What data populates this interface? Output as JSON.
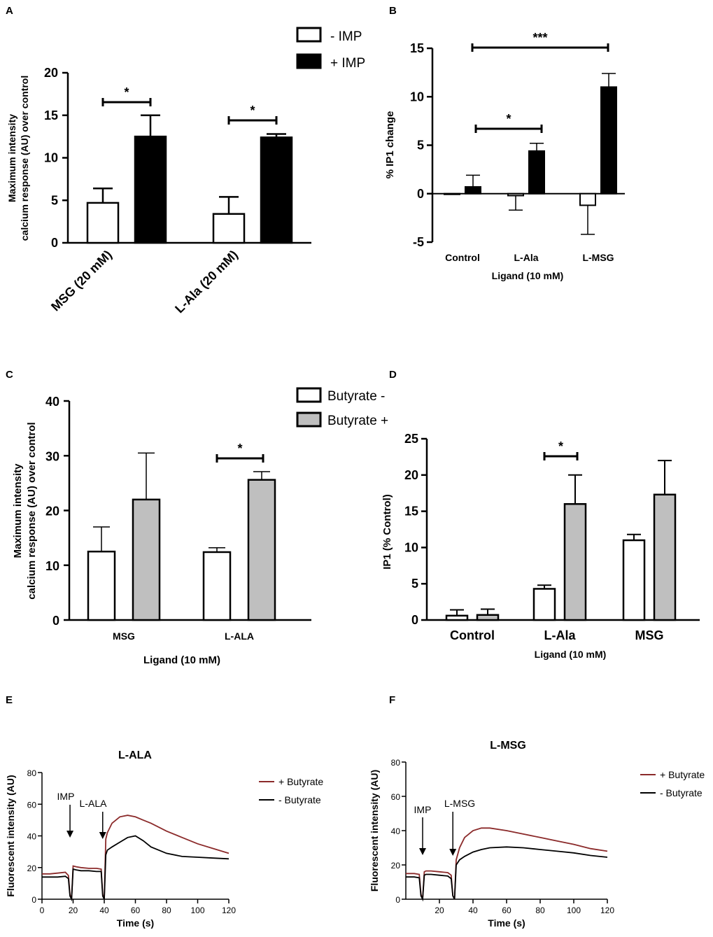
{
  "figure": {
    "panels": [
      "A",
      "B",
      "C",
      "D",
      "E",
      "F"
    ]
  },
  "colors": {
    "black_bar": "#000000",
    "white_bar": "#ffffff",
    "grey_bar": "#bfbfbf",
    "plus_butyrate_line": "#8b2a2a",
    "minus_butyrate_line": "#000000"
  },
  "chart_data": [
    {
      "panel": "A",
      "type": "bar",
      "title": "",
      "xlabel": "",
      "ylabel_lines": [
        "Maximum intensity",
        "calcium response (AU) over control"
      ],
      "categories": [
        "MSG (20 mM)",
        "L-Ala (20 mM)"
      ],
      "ylim": [
        0,
        20
      ],
      "yticks": [
        "0",
        "5",
        "10",
        "15",
        "20"
      ],
      "series": [
        {
          "name": "- IMP",
          "values": [
            4.7,
            3.4
          ],
          "errors": [
            1.7,
            2.0
          ]
        },
        {
          "name": "+ IMP",
          "values": [
            12.5,
            12.4
          ],
          "errors": [
            2.5,
            0.4
          ]
        }
      ],
      "significance": [
        "*",
        "*"
      ],
      "legend": [
        "- IMP",
        "+ IMP"
      ]
    },
    {
      "panel": "B",
      "type": "bar",
      "title": "",
      "xlabel": "Ligand (10 mM)",
      "ylabel": "% IP1 change",
      "categories": [
        "Control",
        "L-Ala",
        "L-MSG"
      ],
      "ylim": [
        -5,
        15
      ],
      "yticks": [
        "-5",
        "0",
        "5",
        "10",
        "15"
      ],
      "series": [
        {
          "name": "- IMP",
          "values": [
            0,
            -0.2,
            -1.2
          ],
          "errors": [
            0,
            1.5,
            3.0
          ]
        },
        {
          "name": "+ IMP",
          "values": [
            0.7,
            4.4,
            11.0
          ],
          "errors": [
            1.2,
            0.8,
            1.4
          ]
        }
      ],
      "significance": [
        "*",
        "***"
      ]
    },
    {
      "panel": "C",
      "type": "bar",
      "title": "",
      "xlabel": "Ligand (10 mM)",
      "ylabel_lines": [
        "Maximum intensity",
        "calcium response (AU) over control"
      ],
      "categories": [
        "MSG",
        "L-ALA"
      ],
      "ylim": [
        0,
        40
      ],
      "yticks": [
        "0",
        "10",
        "20",
        "30",
        "40"
      ],
      "series": [
        {
          "name": "Butyrate -",
          "values": [
            12.5,
            12.4
          ],
          "errors": [
            4.5,
            0.8
          ]
        },
        {
          "name": "Butyrate +",
          "values": [
            22.0,
            25.6
          ],
          "errors": [
            8.5,
            1.5
          ]
        }
      ],
      "significance": [
        "*"
      ],
      "legend": [
        "Butyrate -",
        "Butyrate +"
      ]
    },
    {
      "panel": "D",
      "type": "bar",
      "title": "",
      "xlabel": "Ligand (10 mM)",
      "ylabel": "IP1 (% Control)",
      "categories": [
        "Control",
        "L-Ala",
        "MSG"
      ],
      "ylim": [
        0,
        25
      ],
      "yticks": [
        "0",
        "5",
        "10",
        "15",
        "20",
        "25"
      ],
      "series": [
        {
          "name": "Butyrate -",
          "values": [
            0.6,
            4.3,
            11.0
          ],
          "errors": [
            0.8,
            0.5,
            0.8
          ]
        },
        {
          "name": "Butyrate +",
          "values": [
            0.7,
            16.0,
            17.3
          ],
          "errors": [
            0.8,
            4.0,
            4.7
          ]
        }
      ],
      "significance": [
        "*"
      ]
    },
    {
      "panel": "E",
      "type": "line",
      "title": "L-ALA",
      "xlabel": "Time (s)",
      "ylabel": "Fluorescent intensity (AU)",
      "xlim": [
        0,
        120
      ],
      "ylim": [
        0,
        80
      ],
      "xticks": [
        "0",
        "20",
        "40",
        "60",
        "80",
        "100",
        "120"
      ],
      "yticks": [
        "0",
        "20",
        "40",
        "60",
        "80"
      ],
      "annotations": [
        {
          "label": "IMP",
          "x": 18
        },
        {
          "label": "L-ALA",
          "x": 39
        }
      ],
      "series": [
        {
          "name": "+ Butyrate",
          "x": [
            0,
            5,
            10,
            15,
            17,
            18,
            19,
            20,
            22,
            25,
            30,
            35,
            38,
            39,
            40,
            41,
            42,
            45,
            50,
            55,
            60,
            65,
            70,
            80,
            90,
            100,
            110,
            120
          ],
          "y": [
            16,
            16,
            16.5,
            17,
            15,
            3,
            0,
            21,
            20.5,
            20,
            19.5,
            19.5,
            19,
            3,
            0,
            38,
            42,
            48,
            52,
            53,
            52,
            50,
            48,
            43,
            39,
            35,
            32,
            29
          ]
        },
        {
          "name": "- Butyrate",
          "x": [
            0,
            5,
            10,
            15,
            17,
            18,
            19,
            20,
            22,
            25,
            30,
            35,
            38,
            39,
            40,
            41,
            42,
            45,
            50,
            55,
            60,
            65,
            70,
            80,
            90,
            100,
            110,
            120
          ],
          "y": [
            14,
            14,
            14,
            14.5,
            13,
            2,
            0,
            19,
            18.5,
            18,
            18,
            17.5,
            17.5,
            2,
            0,
            28,
            31,
            33,
            36,
            39,
            40,
            37,
            33,
            29,
            27,
            26.5,
            26,
            25.5
          ]
        }
      ]
    },
    {
      "panel": "F",
      "type": "line",
      "title": "L-MSG",
      "xlabel": "Time (s)",
      "ylabel": "Fluorescent intensity (AU)",
      "xlim": [
        0,
        120
      ],
      "ylim": [
        0,
        80
      ],
      "xticks": [
        "20",
        "40",
        "60",
        "80",
        "100",
        "120"
      ],
      "yticks": [
        "0",
        "20",
        "40",
        "60",
        "80"
      ],
      "annotations": [
        {
          "label": "IMP",
          "x": 10
        },
        {
          "label": "L-MSG",
          "x": 28
        }
      ],
      "series": [
        {
          "name": "+ Butyrate",
          "x": [
            0,
            5,
            8,
            9,
            10,
            11,
            12,
            15,
            20,
            25,
            27,
            28,
            29,
            30,
            32,
            35,
            40,
            45,
            50,
            60,
            70,
            80,
            90,
            100,
            110,
            120
          ],
          "y": [
            15,
            15,
            14.5,
            3,
            0,
            16,
            16.5,
            16.5,
            16,
            15.5,
            14,
            2,
            0,
            23,
            30,
            36,
            40,
            41.5,
            41.5,
            40,
            38,
            36,
            34,
            32,
            29.5,
            28
          ]
        },
        {
          "name": "- Butyrate",
          "x": [
            0,
            5,
            8,
            9,
            10,
            11,
            12,
            15,
            20,
            25,
            27,
            28,
            29,
            30,
            32,
            35,
            40,
            45,
            50,
            60,
            70,
            80,
            90,
            100,
            110,
            120
          ],
          "y": [
            13,
            13,
            12.5,
            2,
            0,
            14,
            14.5,
            14.5,
            14,
            13.5,
            12,
            2,
            0,
            20,
            23,
            25,
            27.5,
            29,
            30,
            30.5,
            30,
            29,
            28,
            27,
            25.5,
            24.5
          ]
        }
      ]
    }
  ]
}
